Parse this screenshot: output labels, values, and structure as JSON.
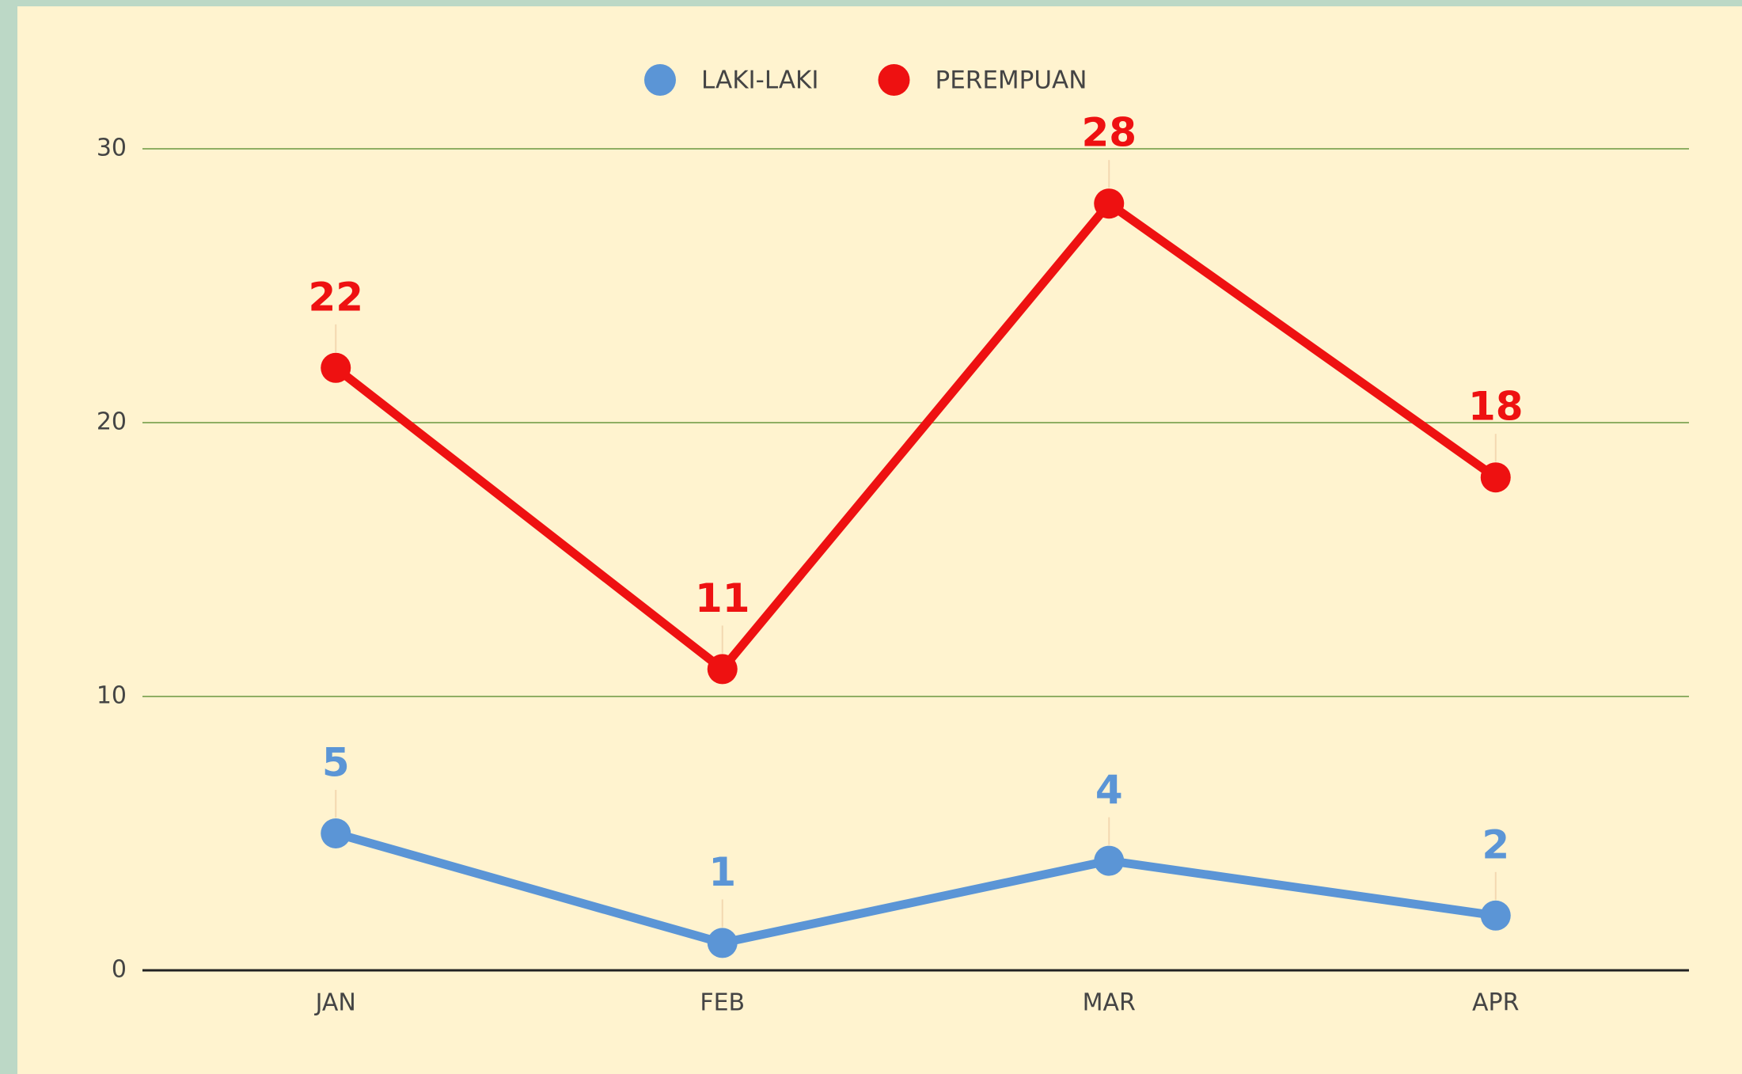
{
  "chart_data": {
    "type": "line",
    "categories": [
      "JAN",
      "FEB",
      "MAR",
      "APR"
    ],
    "series": [
      {
        "name": "LAKI-LAKI",
        "color": "#5b95d6",
        "values": [
          5,
          1,
          4,
          2
        ]
      },
      {
        "name": "PEREMPUAN",
        "color": "#ee1111",
        "values": [
          22,
          11,
          28,
          18
        ]
      }
    ],
    "ylim": [
      0,
      30
    ],
    "yticks": [
      0,
      10,
      20,
      30
    ],
    "grid": true,
    "legend": "top"
  }
}
